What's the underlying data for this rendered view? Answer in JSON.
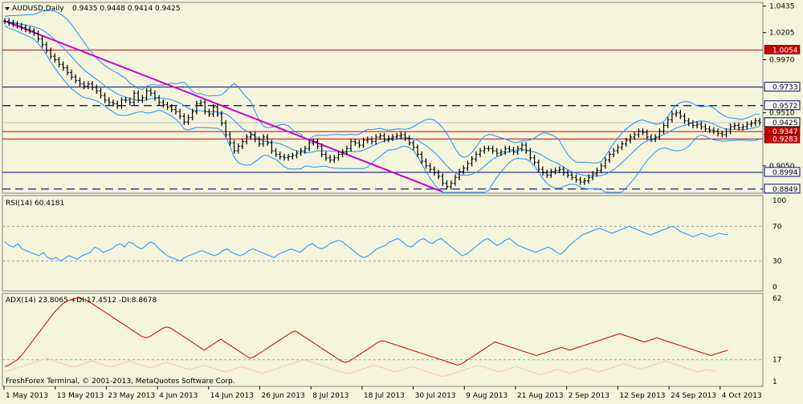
{
  "header": {
    "symbol": "AUDUSD,Daily",
    "ohlc": "0.9435 0.9448 0.9414 0.9425"
  },
  "footer": "FreshForex Terminal, © 2001-2013, MetaQuotes Software Corp.",
  "colors": {
    "background": "#f5f5dc",
    "bars": "#000000",
    "bands": "#1e90ff",
    "trend": "#cc00cc",
    "hline_red": "#cc0000",
    "hline_blue": "#000080",
    "rsi": "#1e90ff",
    "adx": "#cc0000",
    "di": "#f5c8a8",
    "price_label": "#cc0000"
  },
  "chart_data": [
    {
      "type": "line",
      "panel": "price",
      "title": "AUDUSD,Daily",
      "ylim": [
        0.882,
        1.046
      ],
      "y_ticks": [
        "1.0435",
        "1.0205",
        "0.9970",
        "0.9510",
        "0.9050"
      ],
      "levels": [
        {
          "value": 1.0054,
          "label": "1.0054",
          "style": "solid",
          "color": "#cc0000"
        },
        {
          "value": 0.9733,
          "label": "0.9733",
          "style": "solid",
          "color": "#000080"
        },
        {
          "value": 0.9572,
          "label": "0.9572",
          "style": "dashed",
          "color": "#000080"
        },
        {
          "value": 0.9425,
          "label": "0.9425",
          "style": "current",
          "color": "#c0c0c0"
        },
        {
          "value": 0.9347,
          "label": "0.9347",
          "style": "solid",
          "color": "#cc0000"
        },
        {
          "value": 0.9283,
          "label": "0.9283",
          "style": "solid",
          "color": "#cc0000"
        },
        {
          "value": 0.8994,
          "label": "0.8994",
          "style": "solid",
          "color": "#000080"
        },
        {
          "value": 0.8849,
          "label": "0.8849",
          "style": "dashed",
          "color": "#000080"
        }
      ],
      "trendline": {
        "from": [
          0,
          1.0305
        ],
        "to": [
          105,
          0.8825
        ]
      },
      "closes": [
        1.0305,
        1.029,
        1.028,
        1.0265,
        1.025,
        1.0235,
        1.022,
        1.02,
        1.015,
        1.01,
        1.005,
        1.0,
        0.997,
        0.993,
        0.99,
        0.986,
        0.982,
        0.979,
        0.976,
        0.974,
        0.976,
        0.973,
        0.97,
        0.966,
        0.962,
        0.96,
        0.959,
        0.957,
        0.962,
        0.962,
        0.96,
        0.968,
        0.962,
        0.964,
        0.97,
        0.968,
        0.964,
        0.96,
        0.958,
        0.956,
        0.954,
        0.952,
        0.948,
        0.943,
        0.947,
        0.952,
        0.959,
        0.96,
        0.952,
        0.95,
        0.956,
        0.95,
        0.942,
        0.932,
        0.925,
        0.918,
        0.922,
        0.926,
        0.93,
        0.932,
        0.928,
        0.924,
        0.93,
        0.925,
        0.918,
        0.915,
        0.913,
        0.912,
        0.913,
        0.914,
        0.916,
        0.918,
        0.92,
        0.925,
        0.926,
        0.922,
        0.915,
        0.912,
        0.91,
        0.912,
        0.915,
        0.917,
        0.92,
        0.926,
        0.925,
        0.923,
        0.927,
        0.928,
        0.926,
        0.93,
        0.931,
        0.928,
        0.929,
        0.93,
        0.931,
        0.932,
        0.929,
        0.925,
        0.921,
        0.915,
        0.909,
        0.905,
        0.902,
        0.899,
        0.896,
        0.89,
        0.887,
        0.89,
        0.895,
        0.9,
        0.903,
        0.907,
        0.911,
        0.915,
        0.918,
        0.92,
        0.92,
        0.918,
        0.916,
        0.917,
        0.92,
        0.919,
        0.917,
        0.92,
        0.923,
        0.918,
        0.912,
        0.908,
        0.902,
        0.899,
        0.897,
        0.9,
        0.901,
        0.902,
        0.899,
        0.897,
        0.895,
        0.893,
        0.891,
        0.892,
        0.895,
        0.898,
        0.901,
        0.905,
        0.91,
        0.915,
        0.918,
        0.921,
        0.924,
        0.927,
        0.93,
        0.932,
        0.935,
        0.934,
        0.93,
        0.928,
        0.93,
        0.935,
        0.94,
        0.945,
        0.95,
        0.951,
        0.948,
        0.944,
        0.942,
        0.94,
        0.941,
        0.939,
        0.937,
        0.936,
        0.935,
        0.933,
        0.932,
        0.935,
        0.939,
        0.94,
        0.938,
        0.939,
        0.941,
        0.942,
        0.944,
        0.9425
      ]
    },
    {
      "type": "line",
      "panel": "rsi",
      "title": "RSI(14) 60.4181",
      "ylim": [
        0,
        100
      ],
      "y_ticks": [
        "100",
        "70",
        "30",
        "0"
      ],
      "levels": [
        70,
        30
      ],
      "values": [
        52,
        48,
        46,
        50,
        44,
        42,
        40,
        38,
        36,
        40,
        34,
        32,
        34,
        30,
        33,
        36,
        34,
        32,
        36,
        38,
        40,
        46,
        44,
        40,
        42,
        44,
        48,
        50,
        46,
        52,
        50,
        46,
        44,
        48,
        52,
        50,
        44,
        40,
        36,
        34,
        32,
        30,
        34,
        36,
        38,
        40,
        42,
        40,
        38,
        36,
        38,
        42,
        44,
        40,
        38,
        36,
        38,
        42,
        44,
        42,
        40,
        38,
        36,
        34,
        38,
        40,
        42,
        44,
        42,
        40,
        44,
        48,
        50,
        46,
        44,
        46,
        50,
        52,
        54,
        52,
        48,
        44,
        40,
        36,
        34,
        36,
        40,
        44,
        46,
        48,
        52,
        54,
        56,
        52,
        48,
        46,
        50,
        54,
        56,
        52,
        50,
        54,
        56,
        52,
        48,
        44,
        40,
        36,
        38,
        42,
        46,
        50,
        54,
        56,
        52,
        48,
        50,
        54,
        56,
        52,
        48,
        46,
        44,
        42,
        40,
        42,
        44,
        46,
        44,
        40,
        38,
        42,
        48,
        52,
        56,
        60,
        62,
        64,
        66,
        68,
        66,
        64,
        62,
        64,
        66,
        68,
        70,
        68,
        66,
        64,
        62,
        60,
        62,
        64,
        66,
        68,
        70,
        68,
        64,
        62,
        60,
        58,
        60,
        62,
        60,
        58,
        60,
        62,
        61,
        60.4
      ]
    },
    {
      "type": "line",
      "panel": "adx",
      "title": "ADX(14) 23.8065 +DI:17.4512 -DI:8.8678",
      "ylim": [
        1,
        62
      ],
      "y_ticks": [
        "62",
        "17",
        "1"
      ],
      "levels": [
        17
      ],
      "adx": [
        12,
        13,
        15,
        17,
        20,
        24,
        28,
        32,
        36,
        40,
        44,
        48,
        52,
        55,
        58,
        60,
        61,
        62,
        62,
        61,
        60,
        58,
        56,
        54,
        52,
        50,
        48,
        46,
        44,
        42,
        40,
        38,
        36,
        34,
        33,
        34,
        36,
        38,
        40,
        41,
        40,
        38,
        36,
        34,
        32,
        30,
        28,
        26,
        24,
        26,
        28,
        30,
        32,
        30,
        28,
        26,
        24,
        22,
        20,
        18,
        19,
        21,
        23,
        25,
        27,
        29,
        31,
        33,
        35,
        37,
        38,
        36,
        34,
        32,
        30,
        28,
        26,
        24,
        22,
        20,
        18,
        16,
        15,
        16,
        18,
        20,
        22,
        24,
        26,
        28,
        30,
        31,
        30,
        29,
        28,
        27,
        26,
        25,
        24,
        23,
        22,
        21,
        20,
        19,
        18,
        17,
        16,
        15,
        14,
        13,
        14,
        16,
        18,
        20,
        22,
        24,
        26,
        28,
        30,
        29,
        28,
        27,
        26,
        25,
        24,
        23,
        22,
        21,
        20,
        21,
        22,
        23,
        24,
        25,
        26,
        25,
        24,
        25,
        26,
        27,
        28,
        29,
        30,
        31,
        32,
        33,
        34,
        35,
        36,
        35,
        34,
        33,
        32,
        31,
        30,
        31,
        32,
        33,
        32,
        31,
        30,
        29,
        28,
        27,
        26,
        25,
        24,
        23,
        22,
        21,
        20,
        21,
        22,
        23,
        23.8
      ],
      "di": [
        8,
        9,
        10,
        11,
        12,
        13,
        14,
        15,
        16,
        17,
        18,
        17,
        16,
        15,
        14,
        13,
        12,
        12,
        13,
        14,
        15,
        16,
        15,
        14,
        13,
        12,
        12,
        13,
        14,
        15,
        16,
        15,
        14,
        13,
        12,
        11,
        12,
        13,
        14,
        15,
        14,
        13,
        12,
        11,
        10,
        10,
        11,
        12,
        13,
        12,
        11,
        10,
        9,
        8,
        9,
        10,
        11,
        12,
        11,
        10,
        9,
        8,
        7,
        8,
        9,
        10,
        11,
        12,
        13,
        14,
        15,
        16,
        17,
        16,
        15,
        14,
        13,
        12,
        11,
        10,
        9,
        8,
        7,
        7,
        8,
        9,
        10,
        11,
        12,
        13,
        12,
        11,
        10,
        9,
        8,
        9,
        10,
        11,
        12,
        11,
        10,
        9,
        8,
        7,
        6,
        5,
        5,
        6,
        7,
        8,
        9,
        10,
        11,
        12,
        13,
        12,
        11,
        10,
        9,
        8,
        9,
        10,
        11,
        12,
        11,
        10,
        9,
        8,
        7,
        6,
        7,
        8,
        9,
        10,
        9,
        8,
        7,
        8,
        9,
        10,
        11,
        10,
        9,
        8,
        9,
        10,
        11,
        12,
        13,
        14,
        13,
        12,
        11,
        10,
        11,
        12,
        13,
        14,
        15,
        16,
        15,
        14,
        13,
        12,
        11,
        10,
        9,
        8,
        9,
        10,
        9,
        8.9
      ]
    }
  ],
  "x_labels": [
    "1 May 2013",
    "13 May 2013",
    "23 May 2013",
    "4 Jun 2013",
    "14 Jun 2013",
    "26 Jun 2013",
    "8 Jul 2013",
    "18 Jul 2013",
    "30 Jul 2013",
    "9 Aug 2013",
    "21 Aug 2013",
    "2 Sep 2013",
    "12 Sep 2013",
    "24 Sep 2013",
    "4 Oct 2013"
  ]
}
